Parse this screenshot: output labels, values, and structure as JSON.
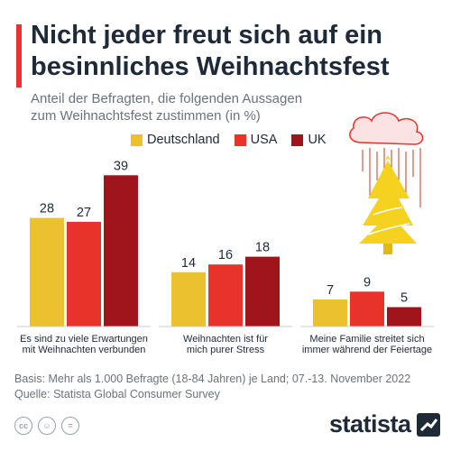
{
  "title": "Nicht jeder freut sich auf ein besinnliches Weihnachtsfest",
  "subtitle": "Anteil der Befragten, die folgenden Aussagen zum Weihnachtsfest zustimmen (in %)",
  "legend": [
    {
      "name": "Deutschland",
      "color": "#ebc12f"
    },
    {
      "name": "USA",
      "color": "#e8332a"
    },
    {
      "name": "UK",
      "color": "#a0141c"
    }
  ],
  "chart_data": {
    "type": "bar",
    "categories": [
      "Es sind zu viele Erwartungen mit Weihnachten verbunden",
      "Weihnachten ist für mich purer Stress",
      "Meine Familie streitet sich immer während der Feiertage"
    ],
    "category_lines": [
      [
        "Es sind zu viele Erwartungen",
        "mit Weihnachten verbunden"
      ],
      [
        "Weihnachten ist für",
        "mich purer Stress"
      ],
      [
        "Meine Familie streitet sich",
        "immer während der Feiertage"
      ]
    ],
    "series": [
      {
        "name": "Deutschland",
        "values": [
          28,
          14,
          7
        ],
        "color": "#ebc12f"
      },
      {
        "name": "USA",
        "values": [
          27,
          16,
          9
        ],
        "color": "#e8332a"
      },
      {
        "name": "UK",
        "values": [
          39,
          18,
          5
        ],
        "color": "#a0141c"
      }
    ],
    "title": "Nicht jeder freut sich auf ein besinnliches Weihnachtsfest",
    "subtitle": "Anteil der Befragten, die folgenden Aussagen zum Weihnachtsfest zustimmen (in %)",
    "xlabel": "",
    "ylabel": "",
    "grid": false,
    "legend_position": "top"
  },
  "footer": {
    "basis": "Basis: Mehr als 1.000 Befragte (18-84 Jahren) je Land; 07.-13. November 2022",
    "source": "Quelle: Statista Global Consumer Survey"
  },
  "icons": [
    "cc-icon",
    "by-icon",
    "nd-icon"
  ],
  "icon_glyphs": [
    "cc",
    "☺",
    "="
  ],
  "logo": "statista"
}
